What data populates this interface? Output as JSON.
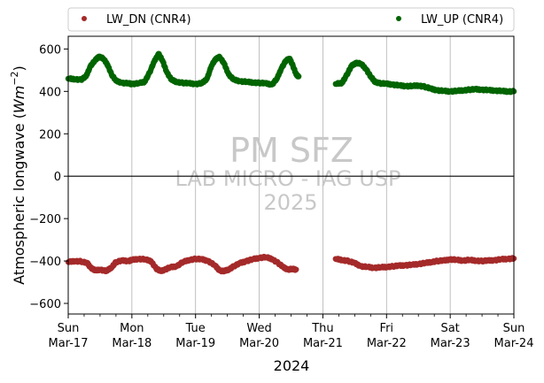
{
  "chart_data": {
    "type": "scatter",
    "ylabel": "Atmospheric longwave (",
    "ylabel_math": "Wm",
    "ylabel_exp": "−2",
    "ylabel_close": ")",
    "xlabel": "2024",
    "ylim": [
      -650,
      660
    ],
    "xlim": [
      0,
      7
    ],
    "yticks": [
      600,
      400,
      200,
      0,
      -200,
      -400,
      -600
    ],
    "xticks": [
      {
        "x": 0,
        "day": "Sun",
        "date": "Mar-17"
      },
      {
        "x": 1,
        "day": "Mon",
        "date": "Mar-18"
      },
      {
        "x": 2,
        "day": "Tue",
        "date": "Mar-19"
      },
      {
        "x": 3,
        "day": "Wed",
        "date": "Mar-20"
      },
      {
        "x": 4,
        "day": "Thu",
        "date": "Mar-21"
      },
      {
        "x": 5,
        "day": "Fri",
        "date": "Mar-22"
      },
      {
        "x": 6,
        "day": "Sat",
        "date": "Mar-23"
      },
      {
        "x": 7,
        "day": "Sun",
        "date": "Mar-24"
      }
    ],
    "grid": "x-major",
    "legend_placement": "top, above plot, two columns",
    "zero_line": true,
    "watermark": {
      "title": "PM SFZ",
      "line1": "LAB MICRO - IAG USP",
      "line2": "2025"
    },
    "series": [
      {
        "name": "LW_DN (CNR4)",
        "color": "#a52a2a",
        "points": [
          [
            0.0,
            -405
          ],
          [
            0.1,
            -400
          ],
          [
            0.2,
            -402
          ],
          [
            0.3,
            -410
          ],
          [
            0.35,
            -430
          ],
          [
            0.42,
            -445
          ],
          [
            0.5,
            -440
          ],
          [
            0.6,
            -448
          ],
          [
            0.68,
            -430
          ],
          [
            0.75,
            -405
          ],
          [
            0.85,
            -398
          ],
          [
            0.95,
            -400
          ],
          [
            1.0,
            -395
          ],
          [
            1.1,
            -390
          ],
          [
            1.2,
            -392
          ],
          [
            1.3,
            -400
          ],
          [
            1.38,
            -435
          ],
          [
            1.45,
            -448
          ],
          [
            1.52,
            -440
          ],
          [
            1.6,
            -430
          ],
          [
            1.7,
            -425
          ],
          [
            1.8,
            -405
          ],
          [
            1.9,
            -395
          ],
          [
            2.0,
            -390
          ],
          [
            2.1,
            -392
          ],
          [
            2.2,
            -400
          ],
          [
            2.3,
            -420
          ],
          [
            2.38,
            -445
          ],
          [
            2.45,
            -448
          ],
          [
            2.52,
            -440
          ],
          [
            2.6,
            -425
          ],
          [
            2.7,
            -410
          ],
          [
            2.8,
            -400
          ],
          [
            2.9,
            -392
          ],
          [
            3.0,
            -385
          ],
          [
            3.1,
            -382
          ],
          [
            3.2,
            -390
          ],
          [
            3.3,
            -410
          ],
          [
            3.38,
            -430
          ],
          [
            3.45,
            -440
          ],
          [
            3.52,
            -438
          ],
          [
            3.58,
            -440
          ]
        ],
        "points_segment2": [
          [
            4.2,
            -390
          ],
          [
            4.3,
            -395
          ],
          [
            4.4,
            -400
          ],
          [
            4.5,
            -410
          ],
          [
            4.6,
            -425
          ],
          [
            4.7,
            -428
          ],
          [
            4.8,
            -432
          ],
          [
            4.9,
            -430
          ],
          [
            5.0,
            -428
          ],
          [
            5.1,
            -425
          ],
          [
            5.2,
            -422
          ],
          [
            5.3,
            -420
          ],
          [
            5.4,
            -418
          ],
          [
            5.5,
            -414
          ],
          [
            5.6,
            -410
          ],
          [
            5.7,
            -405
          ],
          [
            5.8,
            -400
          ],
          [
            5.9,
            -398
          ],
          [
            6.0,
            -392
          ],
          [
            6.1,
            -395
          ],
          [
            6.2,
            -398
          ],
          [
            6.3,
            -395
          ],
          [
            6.4,
            -398
          ],
          [
            6.5,
            -400
          ],
          [
            6.6,
            -398
          ],
          [
            6.7,
            -396
          ],
          [
            6.8,
            -392
          ],
          [
            6.9,
            -390
          ],
          [
            7.0,
            -388
          ]
        ]
      },
      {
        "name": "LW_UP (CNR4)",
        "color": "#006400",
        "points": [
          [
            0.0,
            460
          ],
          [
            0.1,
            458
          ],
          [
            0.2,
            455
          ],
          [
            0.28,
            470
          ],
          [
            0.35,
            520
          ],
          [
            0.42,
            545
          ],
          [
            0.48,
            565
          ],
          [
            0.55,
            555
          ],
          [
            0.62,
            525
          ],
          [
            0.68,
            480
          ],
          [
            0.75,
            450
          ],
          [
            0.85,
            440
          ],
          [
            0.95,
            438
          ],
          [
            1.0,
            435
          ],
          [
            1.1,
            438
          ],
          [
            1.2,
            445
          ],
          [
            1.28,
            490
          ],
          [
            1.35,
            540
          ],
          [
            1.42,
            578
          ],
          [
            1.48,
            545
          ],
          [
            1.55,
            490
          ],
          [
            1.62,
            455
          ],
          [
            1.7,
            445
          ],
          [
            1.8,
            440
          ],
          [
            1.9,
            438
          ],
          [
            2.0,
            435
          ],
          [
            2.1,
            438
          ],
          [
            2.18,
            460
          ],
          [
            2.25,
            520
          ],
          [
            2.32,
            555
          ],
          [
            2.38,
            562
          ],
          [
            2.45,
            530
          ],
          [
            2.52,
            480
          ],
          [
            2.6,
            455
          ],
          [
            2.7,
            448
          ],
          [
            2.8,
            445
          ],
          [
            2.9,
            442
          ],
          [
            3.0,
            440
          ],
          [
            3.1,
            438
          ],
          [
            3.2,
            432
          ],
          [
            3.28,
            460
          ],
          [
            3.35,
            510
          ],
          [
            3.42,
            545
          ],
          [
            3.48,
            555
          ],
          [
            3.53,
            520
          ],
          [
            3.58,
            480
          ],
          [
            3.62,
            470
          ]
        ],
        "points_segment2": [
          [
            4.2,
            435
          ],
          [
            4.3,
            440
          ],
          [
            4.38,
            480
          ],
          [
            4.45,
            520
          ],
          [
            4.52,
            535
          ],
          [
            4.6,
            530
          ],
          [
            4.68,
            505
          ],
          [
            4.75,
            470
          ],
          [
            4.82,
            445
          ],
          [
            4.9,
            438
          ],
          [
            5.0,
            436
          ],
          [
            5.1,
            432
          ],
          [
            5.2,
            428
          ],
          [
            5.3,
            425
          ],
          [
            5.4,
            425
          ],
          [
            5.5,
            428
          ],
          [
            5.6,
            422
          ],
          [
            5.7,
            412
          ],
          [
            5.8,
            405
          ],
          [
            5.9,
            402
          ],
          [
            6.0,
            400
          ],
          [
            6.1,
            402
          ],
          [
            6.2,
            405
          ],
          [
            6.3,
            408
          ],
          [
            6.4,
            410
          ],
          [
            6.5,
            408
          ],
          [
            6.6,
            406
          ],
          [
            6.7,
            404
          ],
          [
            6.8,
            402
          ],
          [
            6.9,
            400
          ],
          [
            7.0,
            400
          ]
        ]
      }
    ]
  }
}
